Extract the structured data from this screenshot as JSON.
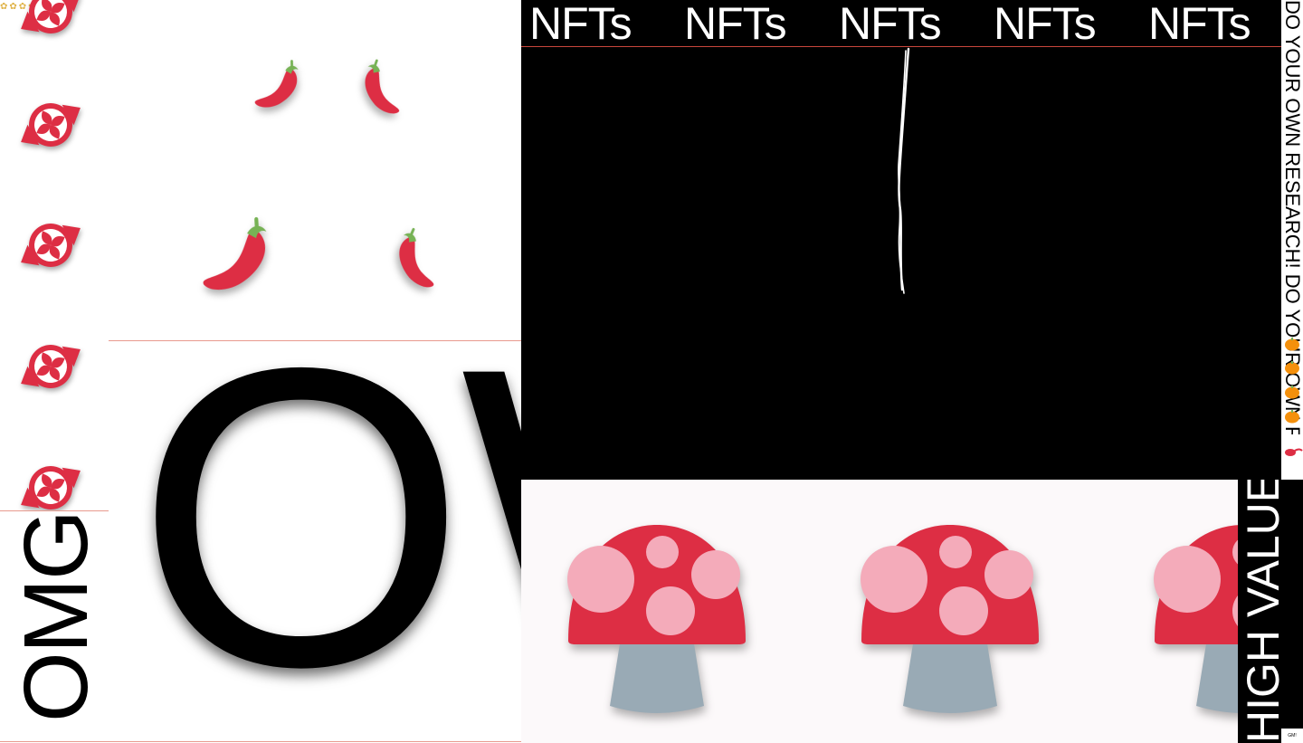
{
  "marquee": {
    "word": "NFTs",
    "repeat": [
      "NFTs",
      "NFTs",
      "NFTs",
      "NFTs",
      "NFTs"
    ]
  },
  "big_text": "OW",
  "omg_text": "OMG",
  "research_text": "DO YOUR OWN RESEARCH! DO YOUR OWN RESEARCH!",
  "high_value_text": "HIGH VALUE AGE",
  "chip_text": "GM!",
  "emoji": {
    "candy": "candy-icon",
    "chili": "hot-pepper-icon",
    "mushroom": "mushroom-icon",
    "pumpkin": "pumpkin-icon"
  },
  "colors": {
    "candy_red": "#dd2e44",
    "mushroom_cap": "#dd2e44",
    "mushroom_spot": "#f4abba",
    "mushroom_stem": "#99aab5",
    "chili_green": "#77b255",
    "divider": "#e89a8e",
    "pumpkin": "#f4900c"
  }
}
